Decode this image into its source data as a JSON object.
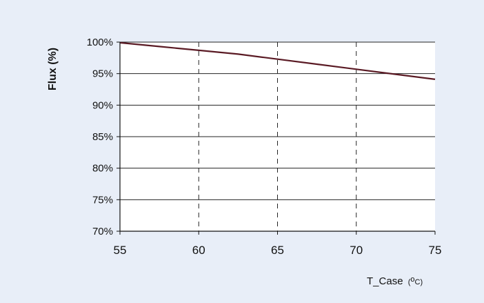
{
  "chart_data": {
    "type": "line",
    "ylabel": "Flux (%)",
    "xlabel_main": "T",
    "xlabel_sub": "_Case",
    "xlabel_unit_open": "(",
    "xlabel_unit_deg": "o",
    "xlabel_unit_rest": "C)",
    "xlim": [
      55,
      75
    ],
    "ylim": [
      70,
      100
    ],
    "x_ticks": [
      55,
      60,
      65,
      70,
      75
    ],
    "x_tick_labels": [
      "55",
      "60",
      "65",
      "70",
      "75"
    ],
    "y_ticks": [
      70,
      75,
      80,
      85,
      90,
      95,
      100
    ],
    "y_tick_labels": [
      "70%",
      "75%",
      "80%",
      "85%",
      "90%",
      "95%",
      "100%"
    ],
    "grid": "horizontal solid lines, vertical dashed lines",
    "series": [
      {
        "color": "#5a1a24",
        "x": [
          55,
          57.5,
          60,
          62.5,
          65,
          67.5,
          70,
          72.5,
          75
        ],
        "y": [
          99.9,
          99.3,
          98.7,
          98.1,
          97.3,
          96.5,
          95.7,
          94.9,
          94.1
        ]
      }
    ],
    "colors": {
      "background": "#e8eef8",
      "plot_background": "#ffffff",
      "line": "#5a1a24",
      "grid": "#222222"
    }
  }
}
